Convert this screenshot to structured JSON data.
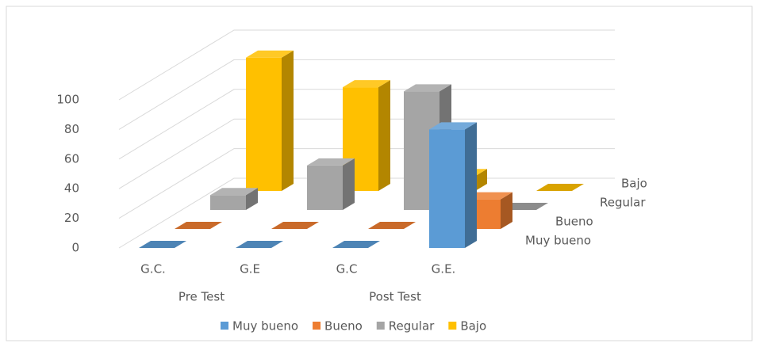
{
  "chart_data": {
    "type": "bar3d",
    "categories": [
      "G.C.",
      "G.E",
      "G.C",
      "G.E."
    ],
    "groups": [
      "Pre Test",
      "Post Test"
    ],
    "series": [
      {
        "name": "Muy bueno",
        "color": "#5b9bd5",
        "values": [
          0,
          0,
          0,
          80
        ]
      },
      {
        "name": "Bueno",
        "color": "#ed7d31",
        "values": [
          0,
          0,
          0,
          20
        ]
      },
      {
        "name": "Regular",
        "color": "#a5a5a5",
        "values": [
          10,
          30,
          80,
          0
        ]
      },
      {
        "name": "Bajo",
        "color": "#ffc000",
        "values": [
          90,
          70,
          10,
          0
        ]
      }
    ],
    "ylim": [
      0,
      100
    ],
    "yticks": [
      0,
      20,
      40,
      60,
      80,
      100
    ],
    "grid": true
  }
}
